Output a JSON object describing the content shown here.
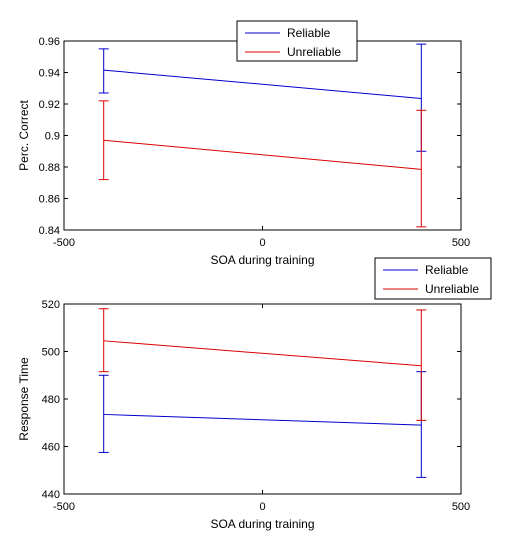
{
  "chart_data": [
    {
      "type": "line",
      "xlabel": "SOA during training",
      "ylabel": "Perc. Correct",
      "xlim": [
        -500,
        500
      ],
      "ylim": [
        0.84,
        0.96
      ],
      "xticks": [
        "-500",
        "0",
        "500"
      ],
      "yticks": [
        "0.84",
        "0.86",
        "0.88",
        "0.9",
        "0.92",
        "0.94",
        "0.96"
      ],
      "grid": false,
      "legend_position": "top-center",
      "x": [
        -400,
        400
      ],
      "series": [
        {
          "name": "Reliable",
          "color": "#0000cc",
          "values": [
            0.9415,
            0.9235
          ],
          "err_low": [
            0.927,
            0.89
          ],
          "err_high": [
            0.955,
            0.958
          ]
        },
        {
          "name": "Unreliable",
          "color": "#dd0000",
          "values": [
            0.897,
            0.8785
          ],
          "err_low": [
            0.872,
            0.842
          ],
          "err_high": [
            0.922,
            0.916
          ]
        }
      ]
    },
    {
      "type": "line",
      "xlabel": "SOA during training",
      "ylabel": "Response Time",
      "xlim": [
        -500,
        500
      ],
      "ylim": [
        440,
        520
      ],
      "xticks": [
        "-500",
        "0",
        "500"
      ],
      "yticks": [
        "440",
        "460",
        "480",
        "500",
        "520"
      ],
      "grid": false,
      "legend_position": "top-right",
      "x": [
        -400,
        400
      ],
      "series": [
        {
          "name": "Reliable",
          "color": "#0000cc",
          "values": [
            473.5,
            469
          ],
          "err_low": [
            457.5,
            447
          ],
          "err_high": [
            490,
            491.5
          ]
        },
        {
          "name": "Unreliable",
          "color": "#dd0000",
          "values": [
            504.5,
            494
          ],
          "err_low": [
            491.5,
            471
          ],
          "err_high": [
            518,
            517.5
          ]
        }
      ]
    }
  ]
}
